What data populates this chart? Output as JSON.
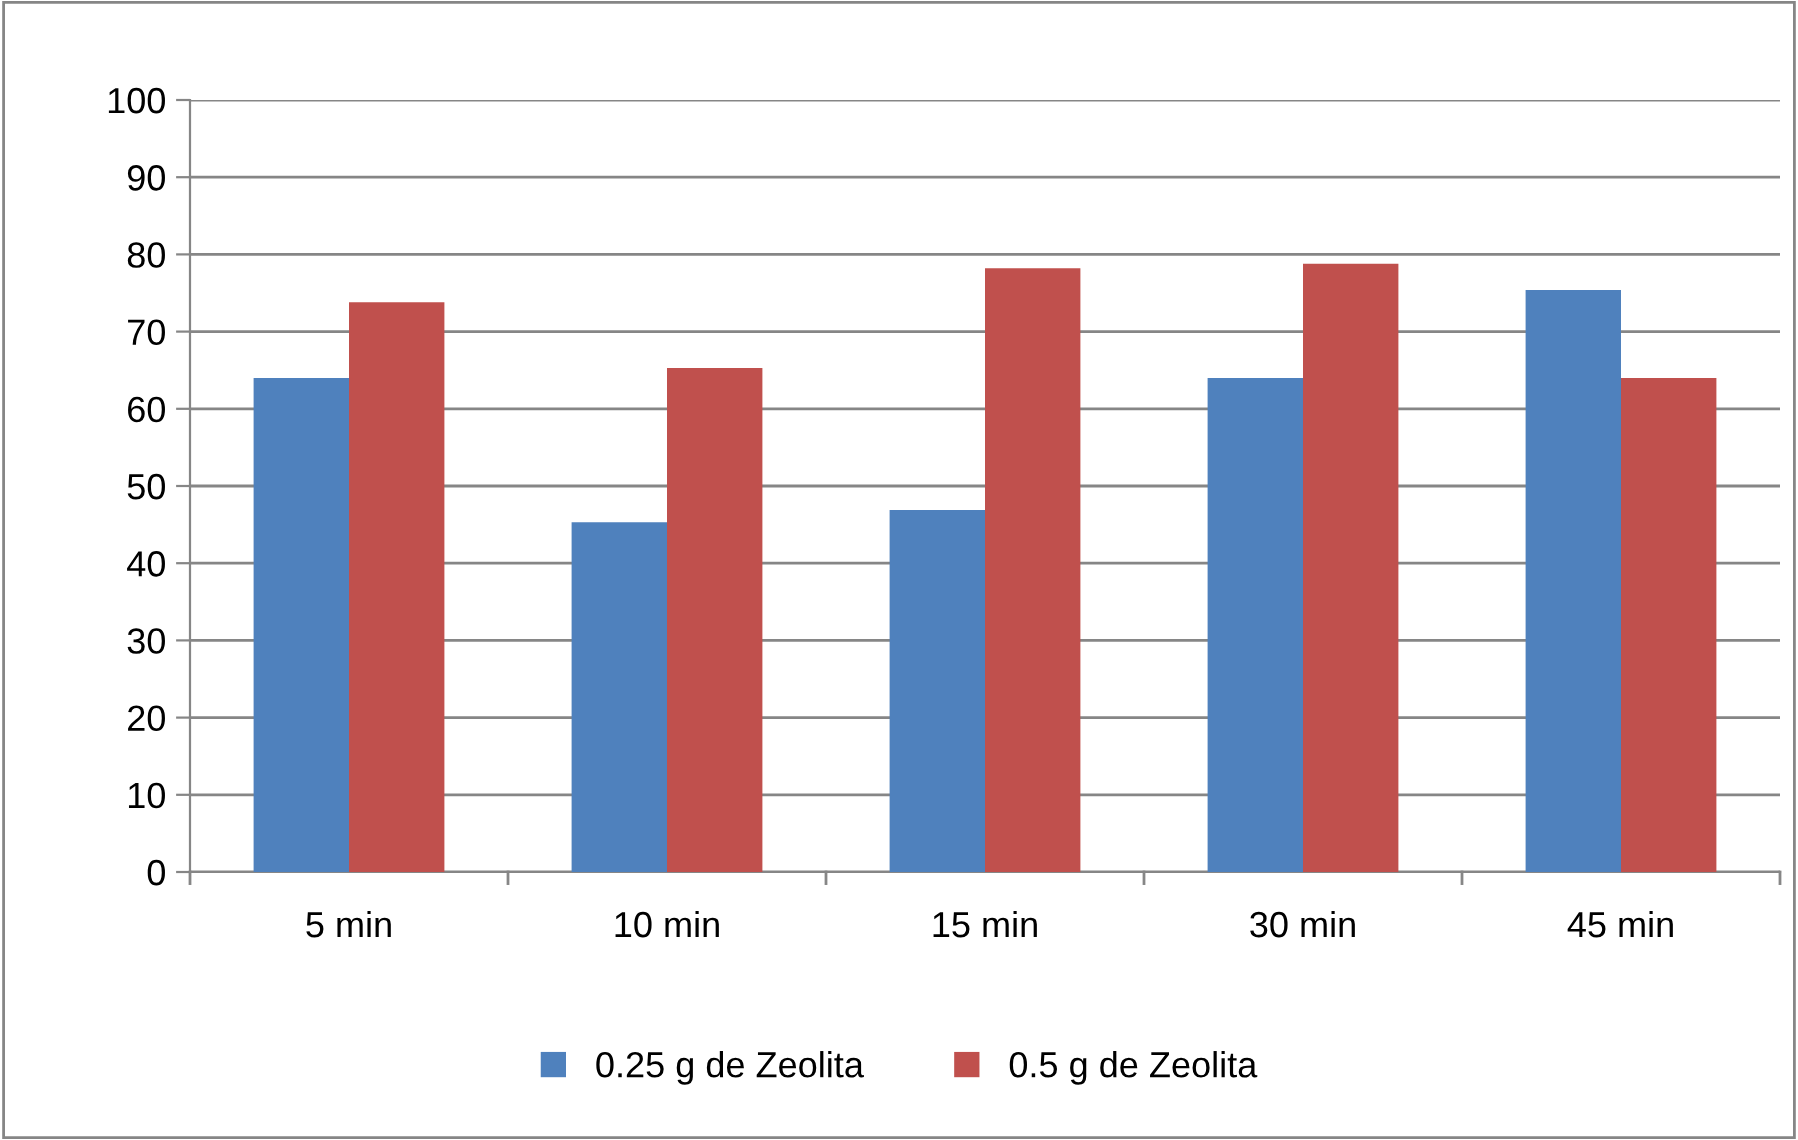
{
  "chart_data": {
    "type": "bar",
    "categories": [
      "5 min",
      "10 min",
      "15 min",
      "30 min",
      "45 min"
    ],
    "series": [
      {
        "name": "0.25 g de Zeolita",
        "color": "#4f81bd",
        "values": [
          64,
          45.3,
          46.9,
          64,
          75.4
        ]
      },
      {
        "name": "0.5 g de Zeolita",
        "color": "#c0504d",
        "values": [
          73.8,
          65.3,
          78.2,
          78.8,
          64
        ]
      }
    ],
    "ylim": [
      0,
      100
    ],
    "yticks": [
      0,
      10,
      20,
      30,
      40,
      50,
      60,
      70,
      80,
      90,
      100
    ],
    "grid": "y",
    "legend": "bottom"
  }
}
